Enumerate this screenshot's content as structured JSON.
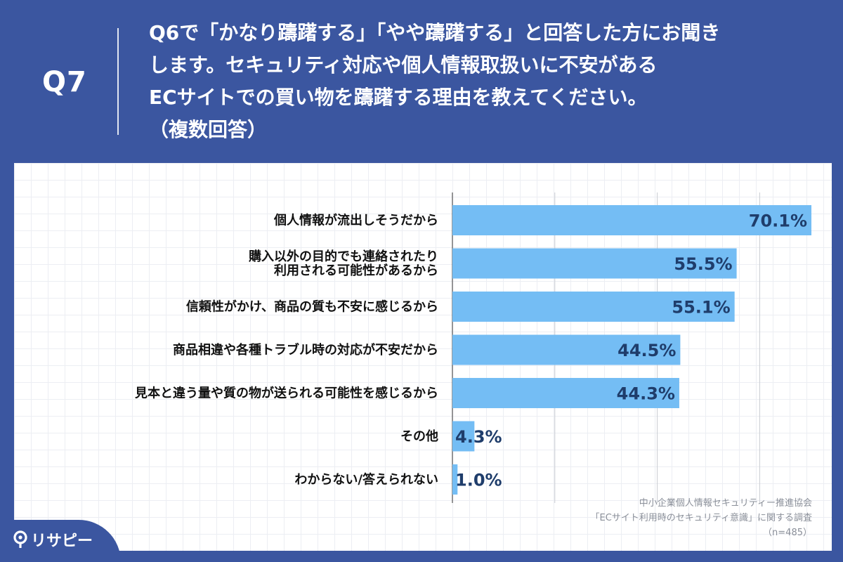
{
  "header": {
    "q_number": "Q7",
    "question": "Q6で「かなり躊躇する」「やや躊躇する」と回答した方にお聞き\nします。セキュリティ対応や個人情報取扱いに不安がある\nECサイトでの買い物を躊躇する理由を教えてください。\n（複数回答）"
  },
  "chart_data": {
    "type": "bar",
    "orientation": "horizontal",
    "categories": [
      [
        "個人情報が流出しそうだから"
      ],
      [
        "購入以外の目的でも連絡されたり",
        "利用される可能性があるから"
      ],
      [
        "信頼性がかけ、商品の質も不安に感じるから"
      ],
      [
        "商品相違や各種トラブル時の対応が不安だから"
      ],
      [
        "見本と違う量や質の物が送られる可能性を感じるから"
      ],
      [
        "その他"
      ],
      [
        "わからない/答えられない"
      ]
    ],
    "values": [
      70.1,
      55.5,
      55.1,
      44.5,
      44.3,
      4.3,
      1.0
    ],
    "value_labels": [
      "70.1%",
      "55.5%",
      "55.1%",
      "44.5%",
      "44.3%",
      "4.3%",
      "1.0%"
    ],
    "xlim": [
      0,
      70
    ],
    "grid": true,
    "bar_color": "#74bdf4",
    "label_color": "#1f3d6b"
  },
  "source": {
    "line1": "中小企業個人情報セキュリティー推進協会",
    "line2": "「ECサイト利用時のセキュリティ意識」に関する調査",
    "line3": "（n=485）"
  },
  "logo": {
    "text": "リサピー",
    "icon": "pin-icon"
  },
  "colors": {
    "background": "#3b56a0",
    "panel": "#ffffff"
  }
}
